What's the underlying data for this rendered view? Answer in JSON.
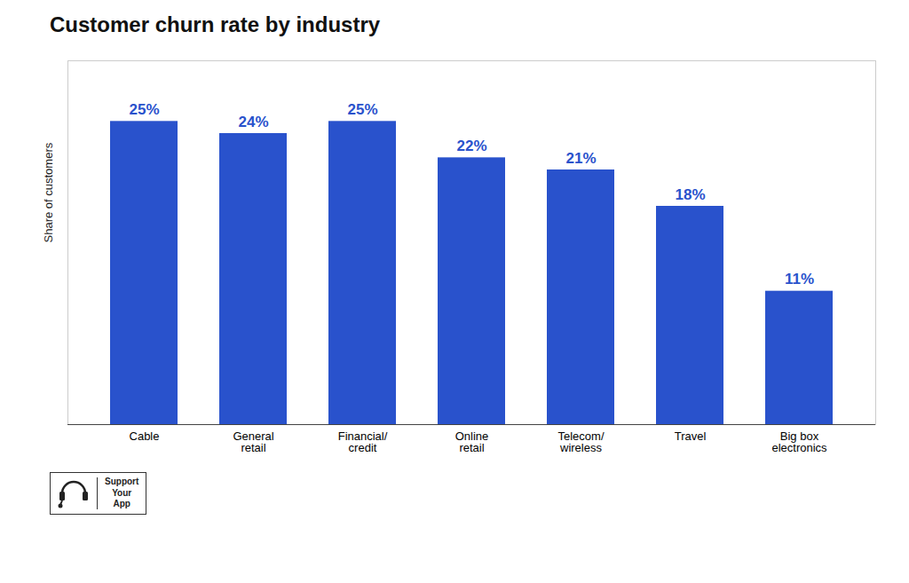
{
  "chart_data": {
    "type": "bar",
    "title": "Customer churn rate by industry",
    "categories": [
      "Cable",
      "General\nretail",
      "Financial/\ncredit",
      "Online\nretail",
      "Telecom/\nwireless",
      "Travel",
      "Big box\nelectronics"
    ],
    "values": [
      25,
      24,
      25,
      22,
      21,
      18,
      11
    ],
    "value_labels": [
      "25%",
      "24%",
      "25%",
      "22%",
      "21%",
      "18%",
      "11%"
    ],
    "data_labels": true,
    "color": "#2952CC",
    "ylabel": "Share of customers",
    "ylim": [
      0,
      30
    ],
    "tick_labels": "x",
    "annotations": [
      "Support",
      "Your",
      "App"
    ]
  }
}
